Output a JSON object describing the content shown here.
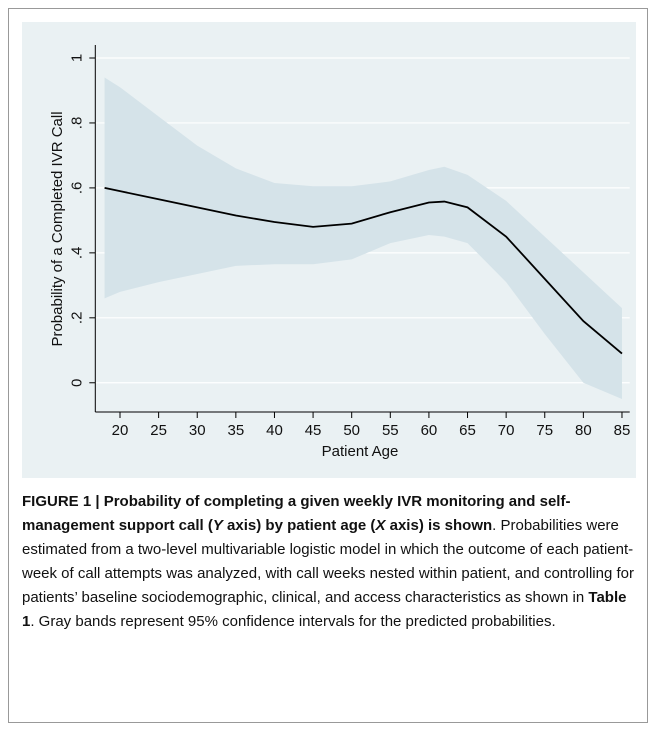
{
  "chart_data": {
    "type": "line",
    "x": [
      18,
      20,
      25,
      30,
      35,
      40,
      45,
      50,
      55,
      60,
      62,
      65,
      70,
      75,
      80,
      85
    ],
    "values": [
      0.6,
      0.59,
      0.565,
      0.54,
      0.515,
      0.495,
      0.48,
      0.49,
      0.525,
      0.555,
      0.558,
      0.54,
      0.45,
      0.32,
      0.19,
      0.09
    ],
    "ci_upper": [
      0.94,
      0.91,
      0.82,
      0.73,
      0.66,
      0.615,
      0.605,
      0.605,
      0.62,
      0.655,
      0.665,
      0.64,
      0.56,
      0.45,
      0.34,
      0.23
    ],
    "ci_lower": [
      0.26,
      0.28,
      0.31,
      0.335,
      0.36,
      0.365,
      0.365,
      0.38,
      0.43,
      0.455,
      0.45,
      0.43,
      0.31,
      0.15,
      0.0,
      -0.05
    ],
    "color": "#000000",
    "band_color": "#d5e3e9",
    "x_label": "Patient Age",
    "y_label": "Probability of a Completed IVR Call",
    "xlim": [
      16.8,
      86
    ],
    "ylim": [
      -0.09,
      1.04
    ],
    "xticks": [
      20,
      25,
      30,
      35,
      40,
      45,
      50,
      55,
      60,
      65,
      70,
      75,
      80,
      85
    ],
    "yticks": [
      0,
      {
        "value": 0.2,
        "label": ".2"
      },
      {
        "value": 0.4,
        "label": ".4"
      },
      {
        "value": 0.6,
        "label": ".6"
      },
      {
        "value": 0.8,
        "label": ".8"
      },
      1
    ],
    "grid": true
  },
  "caption": [
    "FIGURE 1 | Probability of completing a given weekly IVR monitoring and self-management support call (",
    "Y",
    " axis) by patient age (",
    "X",
    " axis) is shown",
    ". Probabilities were estimated from a two-level multivariable logistic model in which the outcome of each patient-week of call attempts was analyzed, with call weeks nested within patient, and controlling for patients’ baseline sociodemographic, clinical, and access characteristics as shown in ",
    "Table 1",
    ". Gray bands represent 95% confidence intervals for the predicted probabilities."
  ]
}
